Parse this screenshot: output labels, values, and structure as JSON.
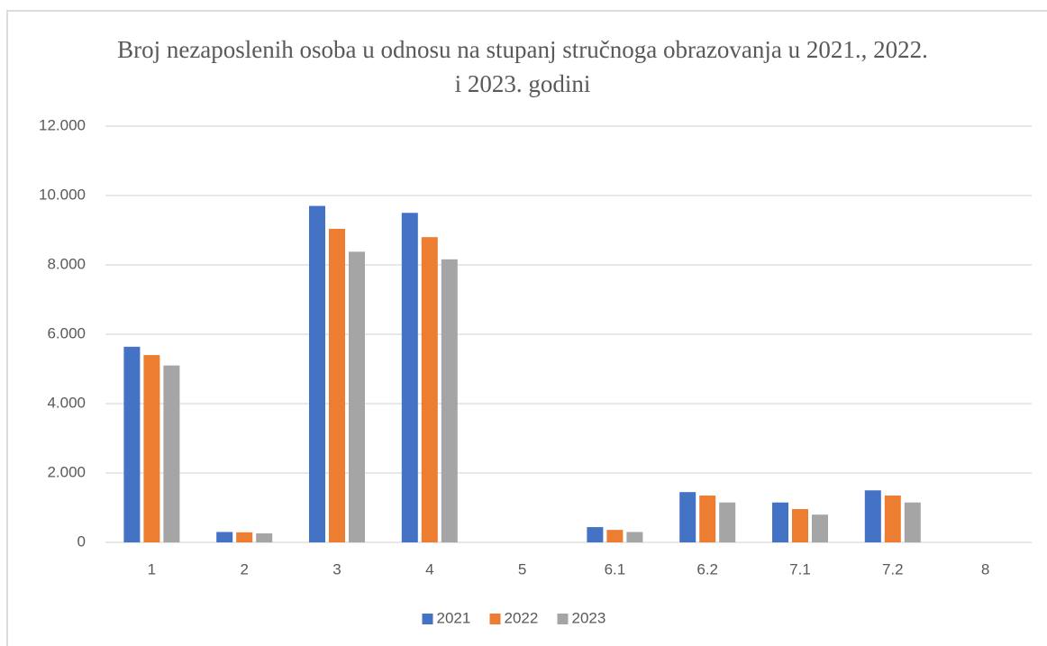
{
  "chart_data": {
    "type": "bar",
    "title": "Broj nezaposlenih osoba u odnosu na stupanj stručnoga obrazovanja u 2021., 2022. i 2023. godini",
    "categories": [
      "1",
      "2",
      "3",
      "4",
      "5",
      "6.1",
      "6.2",
      "7.1",
      "7.2",
      "8"
    ],
    "series": [
      {
        "name": "2021",
        "color": "#4472c4",
        "values": [
          5640,
          300,
          9700,
          9500,
          0,
          440,
          1450,
          1150,
          1500,
          0
        ]
      },
      {
        "name": "2022",
        "color": "#ed7d31",
        "values": [
          5400,
          290,
          9040,
          8800,
          0,
          360,
          1350,
          960,
          1350,
          0
        ]
      },
      {
        "name": "2023",
        "color": "#a5a5a5",
        "values": [
          5100,
          260,
          8380,
          8160,
          0,
          300,
          1150,
          800,
          1150,
          0
        ]
      }
    ],
    "ylim": [
      0,
      12000
    ],
    "yticks": [
      0,
      {
        "value": 2000,
        "label": "2.000"
      },
      {
        "value": 4000,
        "label": "4.000"
      },
      {
        "value": 6000,
        "label": "6.000"
      },
      {
        "value": 8000,
        "label": "8.000"
      },
      {
        "value": 10000,
        "label": "10.000"
      },
      {
        "value": 12000,
        "label": "12.000"
      }
    ],
    "grid": true,
    "legend": "bottom"
  }
}
